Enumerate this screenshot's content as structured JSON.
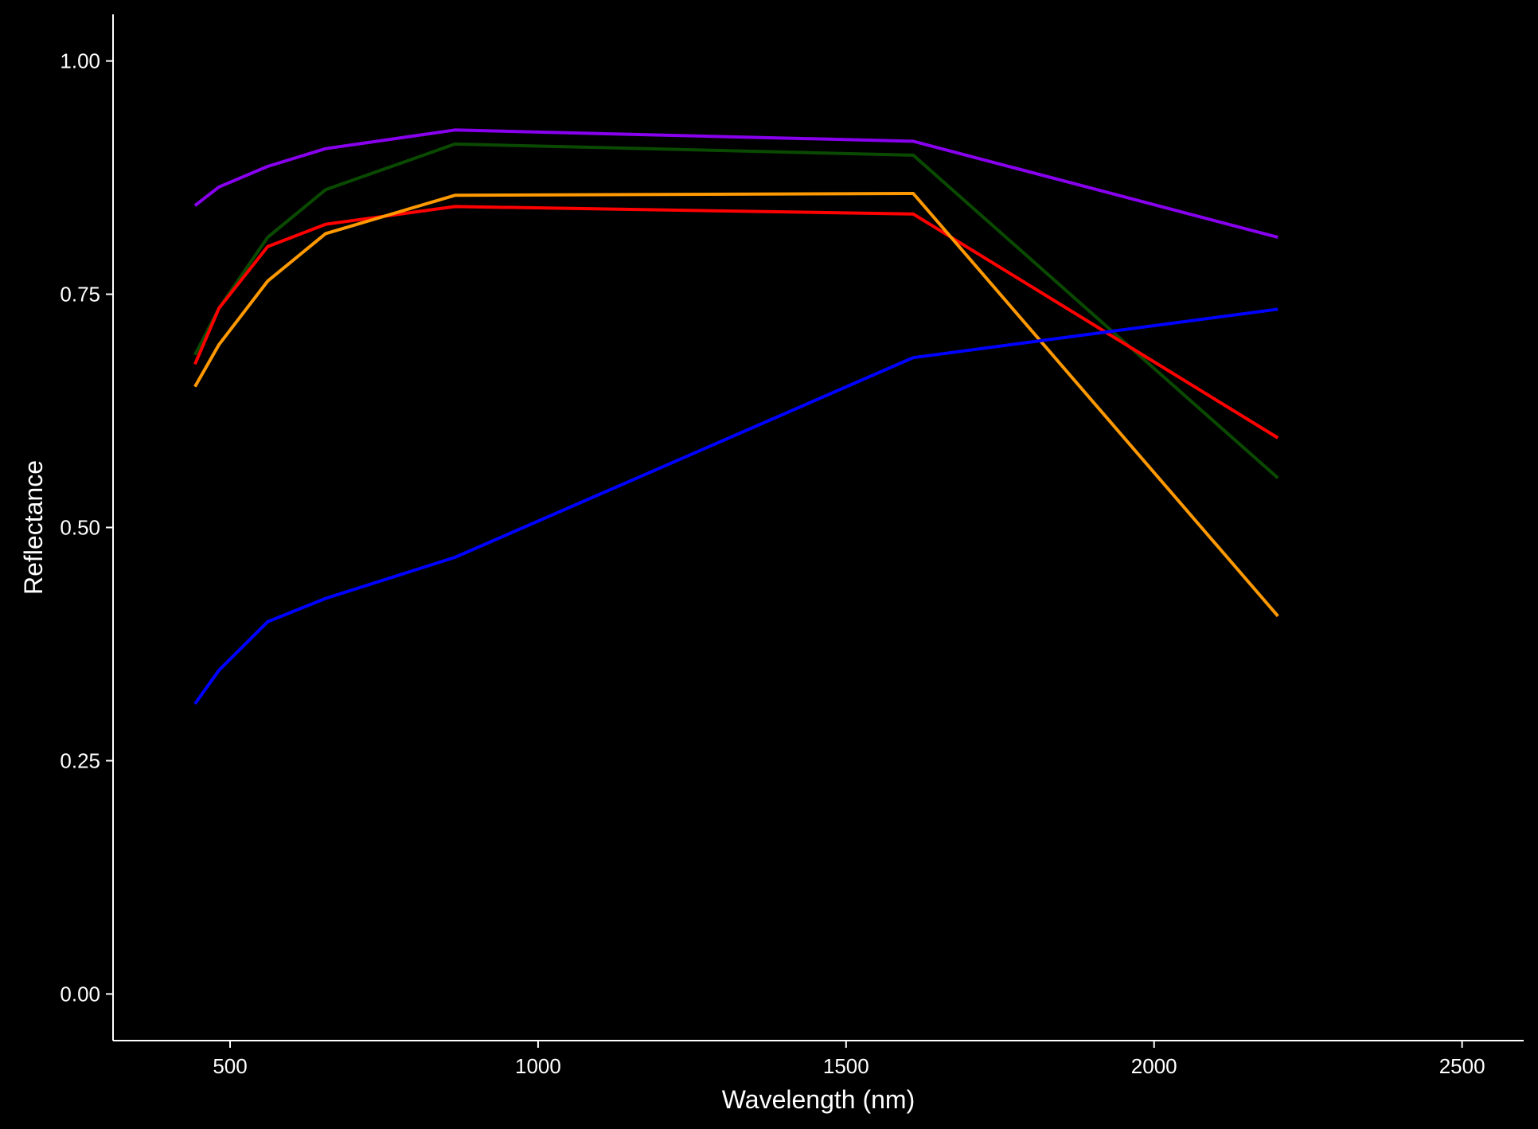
{
  "chart_data": {
    "type": "line",
    "title": "",
    "xlabel": "Wavelength (nm)",
    "ylabel": "Reflectance",
    "xlim": [
      310,
      2600
    ],
    "ylim": [
      -0.05,
      1.05
    ],
    "x_ticks": [
      500,
      1000,
      1500,
      2000,
      2500
    ],
    "x_tick_labels": [
      "500",
      "1000",
      "1500",
      "2000",
      "2500"
    ],
    "y_ticks": [
      0,
      0.25,
      0.5,
      0.75,
      1.0
    ],
    "y_tick_labels": [
      "0.00",
      "0.25",
      "0.50",
      "0.75",
      "1.00"
    ],
    "grid": false,
    "background": "#000000",
    "foreground": "#ffffff",
    "x": [
      443,
      482,
      561,
      655,
      865,
      1609,
      2201
    ],
    "series": [
      {
        "color": "#8800ee",
        "values": [
          0.845,
          0.865,
          0.887,
          0.906,
          0.926,
          0.914,
          0.811
        ]
      },
      {
        "color": "#0a4a00",
        "values": [
          0.685,
          0.735,
          0.811,
          0.862,
          0.911,
          0.899,
          0.553
        ]
      },
      {
        "color": "#ff0000",
        "values": [
          0.675,
          0.735,
          0.801,
          0.825,
          0.844,
          0.836,
          0.596
        ]
      },
      {
        "color": "#ff9900",
        "values": [
          0.651,
          0.696,
          0.764,
          0.815,
          0.856,
          0.858,
          0.405
        ]
      },
      {
        "color": "#0000ff",
        "values": [
          0.311,
          0.347,
          0.399,
          0.424,
          0.468,
          0.682,
          0.734
        ]
      }
    ]
  }
}
